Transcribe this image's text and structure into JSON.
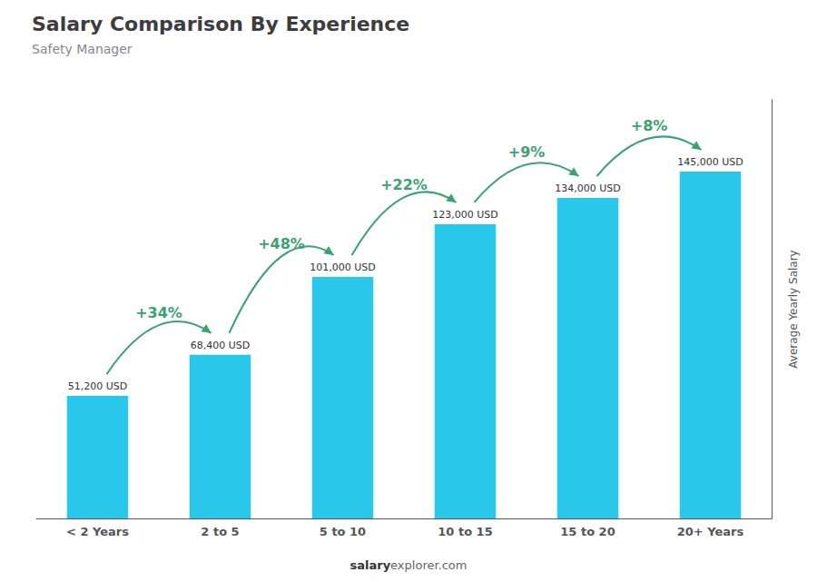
{
  "chart_data": {
    "type": "bar",
    "title": "Salary Comparison By Experience",
    "subtitle": "Safety Manager",
    "categories": [
      "< 2 Years",
      "2 to 5",
      "5 to 10",
      "10 to 15",
      "15 to 20",
      "20+ Years"
    ],
    "values": [
      51200,
      68400,
      101000,
      123000,
      134000,
      145000
    ],
    "value_labels": [
      "51,200 USD",
      "68,400 USD",
      "101,000 USD",
      "123,000 USD",
      "134,000 USD",
      "145,000 USD"
    ],
    "data_labels": true,
    "color": "#29c8ea",
    "ylabel": "Average Yearly Salary",
    "ylim": [
      0,
      175000
    ],
    "tick_labels": "x",
    "grid": false,
    "annotations": [
      "+34%",
      "+48%",
      "+22%",
      "+9%",
      "+8%"
    ],
    "footer": [
      "salary",
      "explorer.com"
    ]
  }
}
